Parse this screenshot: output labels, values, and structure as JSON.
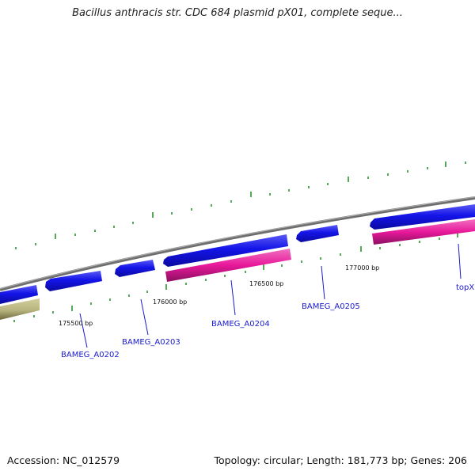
{
  "title": "Bacillus anthracis str. CDC 684 plasmid pX01, complete seque...",
  "footer": {
    "accession": "Accession: NC_012579",
    "summary": "Topology: circular; Length: 181,773 bp; Genes: 206"
  },
  "colors": {
    "backbone": "#7a7a7a",
    "forward_gene": "#1010e0",
    "pink_feature": "#e8189a",
    "olive_feature": "#b8b480",
    "tick": "#1f8a1f",
    "label": "#1a1acc"
  },
  "tick_labels": [
    "175500 bp",
    "176000 bp",
    "176500 bp",
    "177000 bp"
  ],
  "gene_labels": [
    "BAMEG_A0202",
    "BAMEG_A0203",
    "BAMEG_A0204",
    "BAMEG_A0205",
    "topX"
  ]
}
